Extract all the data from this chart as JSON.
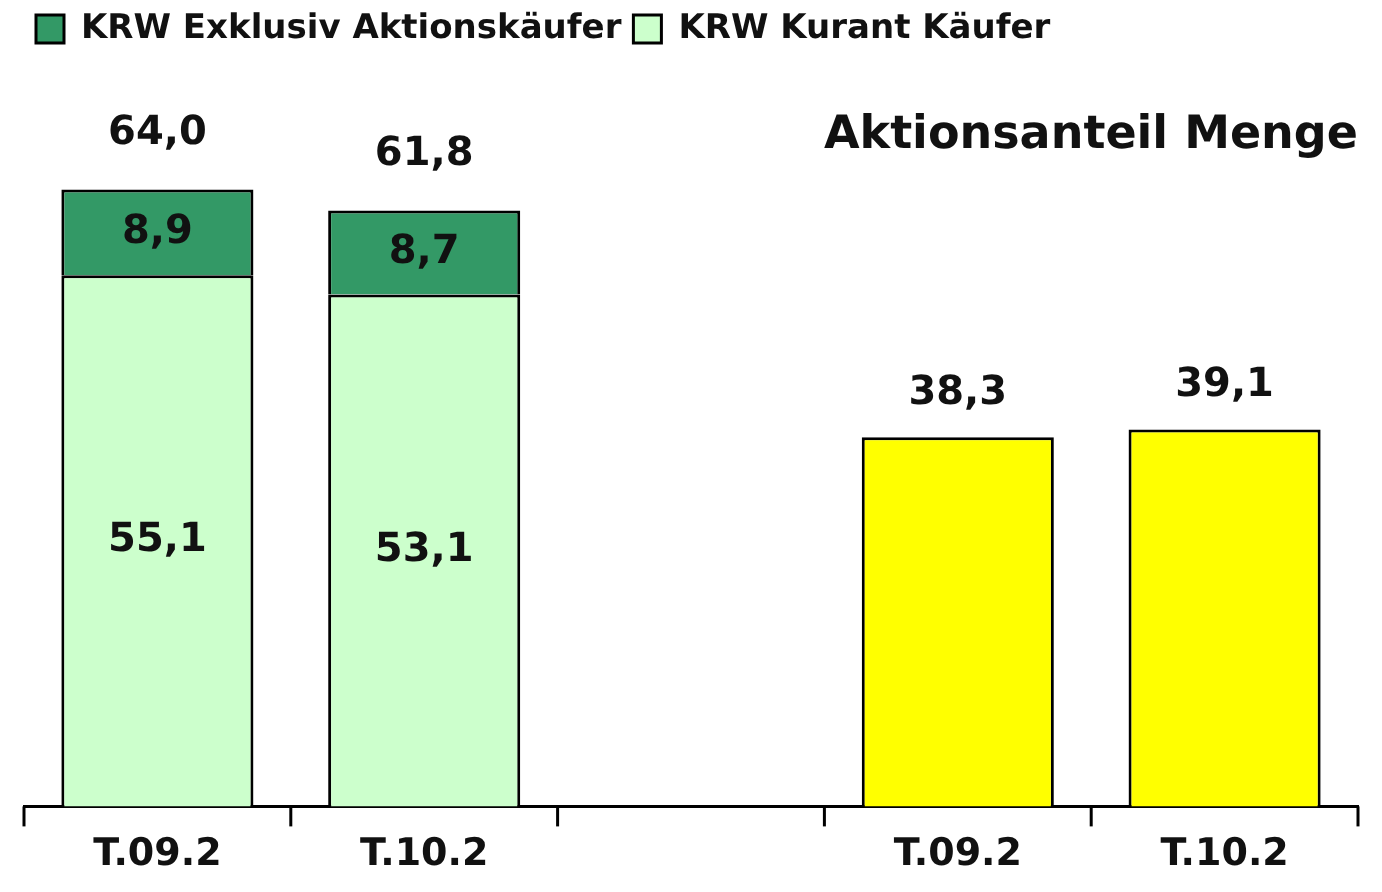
{
  "chart_data": {
    "type": "bar",
    "stacked": true,
    "categories": [
      "T.09.2",
      "T.10.2",
      null,
      "T.09.2",
      "T.10.2"
    ],
    "series": [
      {
        "name": "KRW Kurant Käufer",
        "color": "#ccffcc",
        "values": [
          55.1,
          53.1,
          null,
          null,
          null
        ],
        "value_labels": [
          "55,1",
          "53,1",
          null,
          null,
          null
        ]
      },
      {
        "name": "KRW Exklusiv Aktionskäufer",
        "color": "#339966",
        "values": [
          8.9,
          8.7,
          null,
          null,
          null
        ],
        "value_labels": [
          "8,9",
          "8,7",
          null,
          null,
          null
        ]
      },
      {
        "color": "#ffff00",
        "values": [
          null,
          null,
          null,
          38.3,
          39.1
        ],
        "value_labels": [
          null,
          null,
          null,
          "38,3",
          "39,1"
        ]
      }
    ],
    "totals": [
      "64,0",
      "61,8",
      null,
      null,
      null
    ],
    "annotations": [
      "Aktionsanteil Menge"
    ],
    "legend": "top left",
    "grid": false,
    "tick_labels": "x"
  }
}
